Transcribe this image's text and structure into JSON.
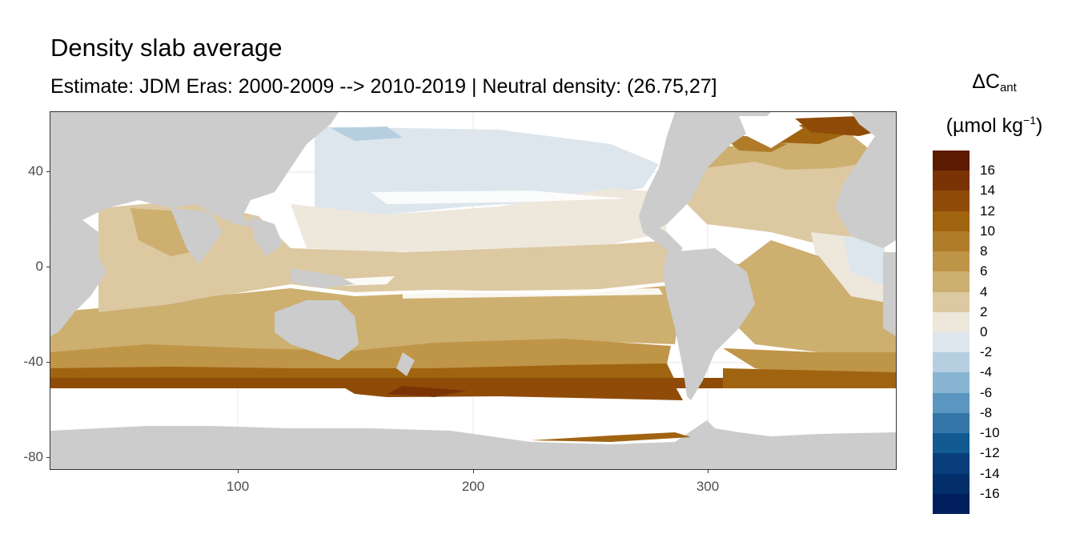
{
  "title": "Density slab average",
  "subtitle": "Estimate: JDM Eras: 2000-2009 --> 2010-2019 | Neutral density: (26.75,27]",
  "legend": {
    "title_symbol": "ΔC",
    "title_sub": "ant",
    "units_main": "(µmol kg",
    "units_sup": "−1",
    "units_close": ")",
    "labels": [
      "16",
      "14",
      "12",
      "10",
      "8",
      "6",
      "4",
      "2",
      "0",
      "-2",
      "-4",
      "-6",
      "-8",
      "-10",
      "-12",
      "-14",
      "-16"
    ],
    "colors": [
      "#5c1a03",
      "#7a3305",
      "#8f4b07",
      "#a06410",
      "#b07c2a",
      "#bf9548",
      "#cdaf70",
      "#dcc9a2",
      "#ede7dc",
      "#dce6ec",
      "#b6cfe0",
      "#88b5d2",
      "#5a96c0",
      "#3476a8",
      "#125a92",
      "#073e7b",
      "#022f6a",
      "#001f5c"
    ],
    "n_bins": 18
  },
  "axes": {
    "x_ticks": [
      "100",
      "200",
      "300"
    ],
    "y_ticks": [
      "40",
      "0",
      "-40",
      "-80"
    ]
  },
  "colors": {
    "land": "#cccccc",
    "missing": "#ffffff",
    "grid": "#ebebeb"
  },
  "map": {
    "projection": "lon-lat",
    "lon_range": [
      20,
      380
    ],
    "lat_range": [
      -85,
      65
    ],
    "variable": "Cant change, density slab average"
  }
}
